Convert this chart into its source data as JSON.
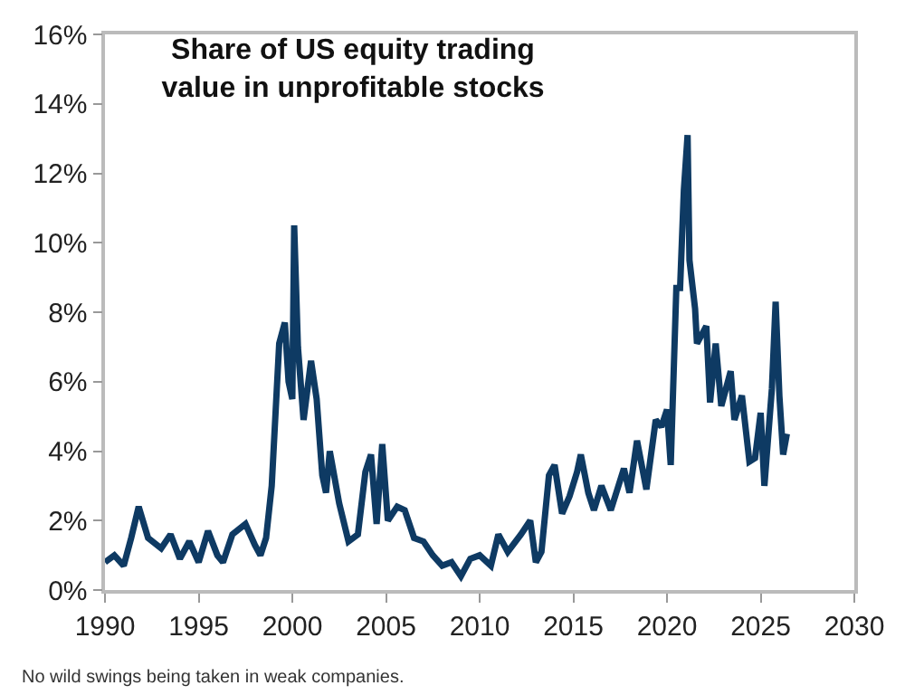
{
  "chart_data": {
    "type": "line",
    "title": "Share of US equity trading\nvalue in unprofitable stocks",
    "annotations": [
      "No wild swings being taken in weak companies."
    ],
    "x": [
      1990.0,
      1990.5,
      1991.0,
      1991.4,
      1991.8,
      1992.3,
      1993.0,
      1993.5,
      1994.0,
      1994.5,
      1995.0,
      1995.5,
      1996.0,
      1996.3,
      1996.8,
      1997.5,
      1998.0,
      1998.3,
      1998.6,
      1998.9,
      1999.3,
      1999.6,
      1999.8,
      2000.0,
      2000.1,
      2000.3,
      2000.6,
      2001.0,
      2001.3,
      2001.6,
      2001.8,
      2002.0,
      2002.5,
      2003.0,
      2003.5,
      2003.9,
      2004.2,
      2004.5,
      2004.8,
      2005.1,
      2005.6,
      2006.0,
      2006.5,
      2007.0,
      2007.5,
      2008.0,
      2008.5,
      2009.0,
      2009.5,
      2010.0,
      2010.6,
      2011.0,
      2011.5,
      2012.2,
      2012.7,
      2013.0,
      2013.3,
      2013.7,
      2014.0,
      2014.4,
      2014.8,
      2015.2,
      2015.4,
      2015.8,
      2016.1,
      2016.5,
      2017.0,
      2017.7,
      2018.0,
      2018.4,
      2018.9,
      2019.4,
      2019.7,
      2020.0,
      2020.2,
      2020.5,
      2020.7,
      2020.9,
      2021.1,
      2021.2,
      2021.5,
      2021.6,
      2022.1,
      2022.3,
      2022.6,
      2022.9,
      2023.4,
      2023.6,
      2024.0,
      2024.4,
      2024.7,
      2025.0,
      2025.2,
      2025.6,
      2025.8,
      2026.0,
      2026.2,
      2026.4
    ],
    "series": [
      {
        "color": "#0e3a63",
        "values": [
          0.8,
          1.0,
          0.7,
          1.5,
          2.4,
          1.5,
          1.2,
          1.6,
          0.9,
          1.4,
          0.8,
          1.7,
          1.0,
          0.8,
          1.6,
          1.9,
          1.3,
          1.0,
          1.5,
          3.0,
          7.1,
          7.7,
          6.0,
          5.5,
          10.5,
          7.0,
          4.9,
          6.6,
          5.5,
          3.3,
          2.8,
          4.0,
          2.5,
          1.4,
          1.6,
          3.4,
          3.9,
          1.9,
          4.2,
          2.0,
          2.4,
          2.3,
          1.5,
          1.4,
          1.0,
          0.7,
          0.8,
          0.4,
          0.9,
          1.0,
          0.7,
          1.6,
          1.1,
          1.6,
          2.0,
          0.8,
          1.1,
          3.3,
          3.6,
          2.2,
          2.7,
          3.4,
          3.9,
          2.8,
          2.3,
          3.0,
          2.3,
          3.5,
          2.8,
          4.3,
          2.9,
          4.9,
          4.7,
          5.2,
          3.6,
          8.7,
          8.7,
          11.5,
          13.1,
          9.5,
          8.1,
          7.1,
          7.6,
          5.4,
          7.1,
          5.3,
          6.3,
          4.9,
          5.6,
          3.7,
          3.8,
          5.1,
          3.0,
          5.8,
          8.3,
          5.6,
          3.9,
          4.5
        ]
      }
    ],
    "xlim": [
      1990,
      2030
    ],
    "xticks": [
      1990,
      1995,
      2000,
      2005,
      2010,
      2015,
      2020,
      2025,
      2030
    ],
    "ylim": [
      0,
      16
    ],
    "yticks": [
      {
        "value": 0,
        "label": "0%"
      },
      {
        "value": 2,
        "label": "2%"
      },
      {
        "value": 4,
        "label": "4%"
      },
      {
        "value": 6,
        "label": "6%"
      },
      {
        "value": 8,
        "label": "8%"
      },
      {
        "value": 10,
        "label": "10%"
      },
      {
        "value": 12,
        "label": "12%"
      },
      {
        "value": 14,
        "label": "14%"
      },
      {
        "value": 16,
        "label": "16%"
      }
    ],
    "line_style": "solid",
    "marker": "none"
  }
}
